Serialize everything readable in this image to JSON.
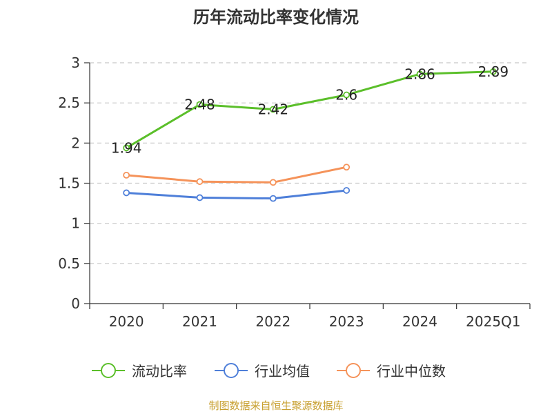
{
  "chart_data": {
    "type": "line",
    "title": "历年流动比率变化情况",
    "categories": [
      "2020",
      "2021",
      "2022",
      "2023",
      "2024",
      "2025Q1"
    ],
    "ylim": [
      0,
      3
    ],
    "yticks": [
      "0",
      "0.5",
      "1",
      "1.5",
      "2",
      "2.5",
      "3"
    ],
    "grid": true,
    "legend_position": "bottom",
    "series": [
      {
        "name": "流动比率",
        "color": "#5bbf2a",
        "values": [
          1.94,
          2.48,
          2.42,
          2.6,
          2.86,
          2.89
        ],
        "labels": [
          "1.94",
          "2.48",
          "2.42",
          "2.6",
          "2.86",
          "2.89"
        ]
      },
      {
        "name": "行业均值",
        "color": "#4e7fd9",
        "values": [
          1.38,
          1.32,
          1.31,
          1.41,
          null,
          null
        ]
      },
      {
        "name": "行业中位数",
        "color": "#f5935a",
        "values": [
          1.6,
          1.52,
          1.51,
          1.7,
          null,
          null
        ]
      }
    ]
  },
  "footer": "制图数据来自恒生聚源数据库"
}
